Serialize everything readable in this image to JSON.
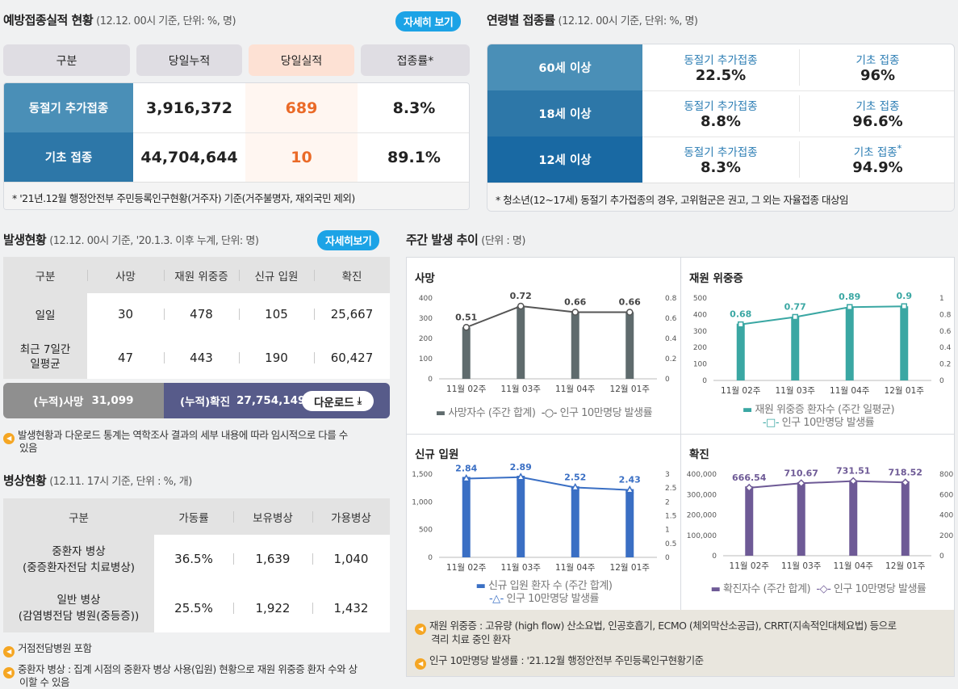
{
  "vacc": {
    "title": "예방접종실적 현황",
    "sub": "(12.12. 00시 기준, 단위: %, 명)",
    "detail_btn": "자세히 보기",
    "headers": [
      "구분",
      "당일누적",
      "당일실적",
      "접종률*"
    ],
    "rows": [
      {
        "label": "동절기 추가접종",
        "total": "3,916,372",
        "today": "689",
        "rate": "8.3%"
      },
      {
        "label": "기초 접종",
        "total": "44,704,644",
        "today": "10",
        "rate": "89.1%"
      }
    ],
    "note": "* '21년.12월 행정안전부 주민등록인구현황(거주자) 기준(거주불명자, 재외국민 제외)"
  },
  "age": {
    "title": "연령별 접종률",
    "sub": "(12.12. 00시 기준, 단위: %, 명)",
    "booster_label": "동절기 추가접종",
    "basic_label": "기초 접종",
    "rows": [
      {
        "label": "60세 이상",
        "booster": "22.5%",
        "basic": "96%",
        "star": ""
      },
      {
        "label": "18세 이상",
        "booster": "8.8%",
        "basic": "96.6%",
        "star": ""
      },
      {
        "label": "12세 이상",
        "booster": "8.3%",
        "basic": "94.9%",
        "star": "*"
      }
    ],
    "note": "* 청소년(12~17세) 동절기 추가접종의 경우, 고위험군은 권고, 그 외는 자율접종 대상임"
  },
  "occ": {
    "title": "발생현황",
    "sub": "(12.12. 00시 기준, '20.1.3. 이후 누계, 단위: 명)",
    "detail_btn": "자세히보기",
    "headers": [
      "구분",
      "사망",
      "재원 위중증",
      "신규 입원",
      "확진"
    ],
    "rows": [
      {
        "label": "일일",
        "label2": "",
        "c1": "30",
        "c2": "478",
        "c3": "105",
        "c4": "25,667"
      },
      {
        "label": "최근 7일간",
        "label2": "일평균",
        "c1": "47",
        "c2": "443",
        "c3": "190",
        "c4": "60,427"
      }
    ],
    "cum_death_label": "(누적)사망",
    "cum_death_value": "31,099",
    "cum_conf_label": "(누적)확진",
    "cum_conf_value": "27,754,149",
    "download": "다운로드",
    "note1": "발생현황과 다운로드 통계는 역학조사 결과의 세부 내용에 따라 임시적으로 다를 수",
    "note1b": "있음"
  },
  "beds": {
    "title": "병상현황",
    "sub": "(12.11. 17시 기준, 단위 : %, 개)",
    "headers": [
      "구분",
      "가동률",
      "보유병상",
      "가용병상"
    ],
    "rows": [
      {
        "l1": "중환자 병상",
        "l2": "(중증환자전담 치료병상)",
        "rate": "36.5%",
        "have": "1,639",
        "avail": "1,040"
      },
      {
        "l1": "일반 병상",
        "l2": "(감염병전담 병원(중등증))",
        "rate": "25.5%",
        "have": "1,922",
        "avail": "1,432"
      }
    ],
    "note1": "거점전담병원 포함",
    "note2": "중환자 병상 : 집계 시점의 중환자 병상 사용(입원) 현황으로 재원 위중증 환자 수와 상",
    "note2b": "이할 수 있음"
  },
  "weekly": {
    "title": "주간 발생 추이",
    "sub": "(단위 : 명)",
    "note1": "재원 위중증 : 고유량 (high flow) 산소요법, 인공호흡기, ECMO (체외막산소공급), CRRT(지속적인대체요법) 등으로",
    "note1b": "격리 치료 중인 환자",
    "note2": "인구 10만명당 발생률 : '21.12월 행정안전부 주민등록인구현황기준"
  },
  "chart_data": [
    {
      "type": "bar",
      "title": "사망",
      "categories": [
        "11월 02주",
        "11월 03주",
        "11월 04주",
        "12월 01주"
      ],
      "series": [
        {
          "name": "사망자수 (주간 합계)",
          "values": [
            255,
            360,
            330,
            330
          ],
          "color": "#5f6b6d"
        },
        {
          "name": "인구 10만명당 발생률",
          "values": [
            0.51,
            0.72,
            0.66,
            0.66
          ],
          "type": "line",
          "axis": "right"
        }
      ],
      "labels": [
        "0.51",
        "0.72",
        "0.66",
        "0.66"
      ],
      "ylim": [
        0,
        400
      ],
      "yticks": [
        "0",
        "100",
        "200",
        "300",
        "400"
      ],
      "y2lim": [
        0,
        0.8
      ],
      "y2ticks": [
        "0",
        "0.2",
        "0.4",
        "0.6",
        "0.8"
      ],
      "legend1": "사망자수 (주간 합계)",
      "legend2": "인구 10만명당 발생률"
    },
    {
      "type": "bar",
      "title": "재원 위중증",
      "categories": [
        "11월 02주",
        "11월 03주",
        "11월 04주",
        "12월 01주"
      ],
      "series": [
        {
          "name": "재원 위중증 환자수 (주간 일평균)",
          "values": [
            345,
            385,
            445,
            450
          ],
          "color": "#3aa7a3"
        },
        {
          "name": "인구 10만명당 발생률",
          "values": [
            0.68,
            0.77,
            0.89,
            0.9
          ],
          "type": "line",
          "axis": "right"
        }
      ],
      "labels": [
        "0.68",
        "0.77",
        "0.89",
        "0.9"
      ],
      "ylim": [
        0,
        500
      ],
      "yticks": [
        "0",
        "100",
        "200",
        "300",
        "400",
        "500"
      ],
      "y2lim": [
        0,
        1
      ],
      "y2ticks": [
        "0",
        "0.2",
        "0.4",
        "0.6",
        "0.8",
        "1"
      ],
      "legend1": "재원 위중증 환자수 (주간 일평균)",
      "legend2": "인구 10만명당 발생률"
    },
    {
      "type": "bar",
      "title": "신규 입원",
      "categories": [
        "11월 02주",
        "11월 03주",
        "11월 04주",
        "12월 01주"
      ],
      "series": [
        {
          "name": "신규 입원 환자 수 (주간 합계)",
          "values": [
            1450,
            1470,
            1280,
            1230
          ],
          "color": "#3a6fc4"
        },
        {
          "name": "인구 10만명당 발생률",
          "values": [
            2.84,
            2.89,
            2.52,
            2.43
          ],
          "type": "line",
          "axis": "right"
        }
      ],
      "labels": [
        "2.84",
        "2.89",
        "2.52",
        "2.43"
      ],
      "ylim": [
        0,
        1500
      ],
      "yticks": [
        "0",
        "500",
        "1,000",
        "1,500"
      ],
      "y2lim": [
        0,
        3
      ],
      "y2ticks": [
        "0",
        "0.5",
        "1",
        "1.5",
        "2",
        "2.5",
        "3"
      ],
      "legend1": "신규 입원 환자 수 (주간 합계)",
      "legend2": "인구 10만명당 발생률"
    },
    {
      "type": "bar",
      "title": "확진",
      "categories": [
        "11월 02주",
        "11월 03주",
        "11월 04주",
        "12월 01주"
      ],
      "series": [
        {
          "name": "확진자수 (주간 합계)",
          "values": [
            340000,
            360000,
            370000,
            365000
          ],
          "color": "#6e5a96"
        },
        {
          "name": "인구 10만명당 발생률",
          "values": [
            666.54,
            710.67,
            731.51,
            718.52
          ],
          "type": "line",
          "axis": "right"
        }
      ],
      "labels": [
        "666.54",
        "710.67",
        "731.51",
        "718.52"
      ],
      "ylim": [
        0,
        400000
      ],
      "yticks": [
        "0",
        "100,000",
        "200,000",
        "300,000",
        "400,000"
      ],
      "y2lim": [
        0,
        800
      ],
      "y2ticks": [
        "0",
        "200",
        "400",
        "600",
        "800"
      ],
      "legend1": "확진자수 (주간 합계)",
      "legend2": "인구 10만명당 발생률"
    }
  ]
}
